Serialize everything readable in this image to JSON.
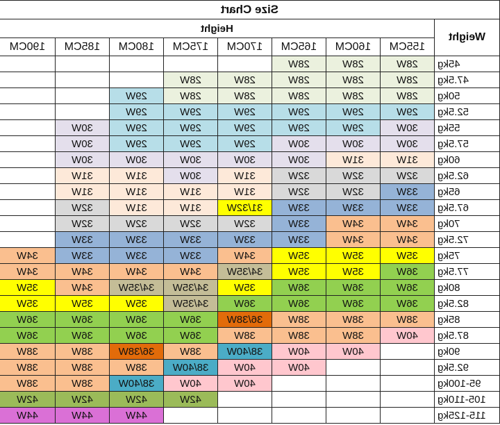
{
  "title": "Size Chart",
  "weight_header": "Weight",
  "height_header": "Height",
  "heights": [
    "155CM",
    "160CM",
    "165CM",
    "170CM",
    "175CM",
    "180CM",
    "185CM",
    "190CM"
  ],
  "colors": {
    "g": "#ebf1de",
    "b": "#b7dee8",
    "l": "#e4dfec",
    "p": "#fde9d9",
    "s": "#d9d9d9",
    "d": "#95b3d7",
    "y": "#ffff00",
    "o": "#fabf8f",
    "k": "#92d050",
    "t": "#c4bd97",
    "r": "#e26b0a",
    "c": "#4bacc6",
    "n": "#ffc7ce",
    "m": "#9bbb59",
    "v": "#da70d6",
    "w": "#ffffff",
    "a": "#fcd5b4"
  },
  "rows": [
    {
      "weight": "45kg",
      "cells": [
        [
          "28W",
          "g"
        ],
        [
          "28W",
          "g"
        ],
        [
          "28W",
          "g"
        ],
        [
          "",
          "w"
        ],
        [
          "",
          "w"
        ],
        [
          "",
          "w"
        ],
        [
          "",
          "w"
        ],
        [
          "",
          "w"
        ]
      ]
    },
    {
      "weight": "47.5kg",
      "cells": [
        [
          "28W",
          "g"
        ],
        [
          "28W",
          "g"
        ],
        [
          "28W",
          "g"
        ],
        [
          "28W",
          "g"
        ],
        [
          "28W",
          "g"
        ],
        [
          "",
          "w"
        ],
        [
          "",
          "w"
        ],
        [
          "",
          "w"
        ]
      ]
    },
    {
      "weight": "50kg",
      "cells": [
        [
          "28W",
          "g"
        ],
        [
          "28W",
          "g"
        ],
        [
          "28W",
          "g"
        ],
        [
          "28W",
          "g"
        ],
        [
          "28W",
          "g"
        ],
        [
          "29W",
          "b"
        ],
        [
          "",
          "w"
        ],
        [
          "",
          "w"
        ]
      ]
    },
    {
      "weight": "52.5kg",
      "cells": [
        [
          "29W",
          "b"
        ],
        [
          "29W",
          "b"
        ],
        [
          "29W",
          "b"
        ],
        [
          "29W",
          "b"
        ],
        [
          "29W",
          "b"
        ],
        [
          "29W",
          "b"
        ],
        [
          "",
          "w"
        ],
        [
          "",
          "w"
        ]
      ]
    },
    {
      "weight": "55kg",
      "cells": [
        [
          "30W",
          "l"
        ],
        [
          "29W",
          "b"
        ],
        [
          "29W",
          "b"
        ],
        [
          "29W",
          "b"
        ],
        [
          "29W",
          "b"
        ],
        [
          "29W",
          "b"
        ],
        [
          "30W",
          "l"
        ],
        [
          "",
          "w"
        ]
      ]
    },
    {
      "weight": "57.5kg",
      "cells": [
        [
          "30W",
          "l"
        ],
        [
          "30W",
          "l"
        ],
        [
          "30W",
          "l"
        ],
        [
          "29W",
          "b"
        ],
        [
          "29W",
          "b"
        ],
        [
          "29W",
          "b"
        ],
        [
          "30W",
          "l"
        ],
        [
          "",
          "w"
        ]
      ]
    },
    {
      "weight": "60kg",
      "cells": [
        [
          "31W",
          "p"
        ],
        [
          "31W",
          "p"
        ],
        [
          "30W",
          "l"
        ],
        [
          "30W",
          "l"
        ],
        [
          "30W",
          "l"
        ],
        [
          "30W",
          "l"
        ],
        [
          "30W",
          "l"
        ],
        [
          "",
          "w"
        ]
      ]
    },
    {
      "weight": "62.5kg",
      "cells": [
        [
          "32W",
          "s"
        ],
        [
          "32W",
          "s"
        ],
        [
          "32W",
          "s"
        ],
        [
          "31W",
          "p"
        ],
        [
          "30W",
          "l"
        ],
        [
          "31W",
          "p"
        ],
        [
          "31W",
          "p"
        ],
        [
          "",
          "w"
        ]
      ]
    },
    {
      "weight": "65kg",
      "cells": [
        [
          "33W",
          "d"
        ],
        [
          "32W",
          "s"
        ],
        [
          "32W",
          "s"
        ],
        [
          "31W",
          "p"
        ],
        [
          "31W",
          "p"
        ],
        [
          "31W",
          "p"
        ],
        [
          "31W",
          "p"
        ],
        [
          "",
          "w"
        ]
      ]
    },
    {
      "weight": "67.5kg",
      "cells": [
        [
          "33W",
          "d"
        ],
        [
          "33W",
          "d"
        ],
        [
          "33W",
          "d"
        ],
        [
          "31/32W",
          "y"
        ],
        [
          "31W",
          "p"
        ],
        [
          "31W",
          "p"
        ],
        [
          "32W",
          "s"
        ],
        [
          "",
          "w"
        ]
      ]
    },
    {
      "weight": "70kg",
      "cells": [
        [
          "34W",
          "o"
        ],
        [
          "34W",
          "o"
        ],
        [
          "33W",
          "d"
        ],
        [
          "32W",
          "s"
        ],
        [
          "32W",
          "s"
        ],
        [
          "32W",
          "s"
        ],
        [
          "32W",
          "s"
        ],
        [
          "",
          "w"
        ]
      ]
    },
    {
      "weight": "72.5kg",
      "cells": [
        [
          "34W",
          "o"
        ],
        [
          "34W",
          "o"
        ],
        [
          "33W",
          "d"
        ],
        [
          "33W",
          "d"
        ],
        [
          "33W",
          "d"
        ],
        [
          "33W",
          "d"
        ],
        [
          "33W",
          "d"
        ],
        [
          "",
          "w"
        ]
      ]
    },
    {
      "weight": "75kg",
      "cells": [
        [
          "35W",
          "y"
        ],
        [
          "35W",
          "y"
        ],
        [
          "35W",
          "y"
        ],
        [
          "34W",
          "o"
        ],
        [
          "33W",
          "d"
        ],
        [
          "33W",
          "d"
        ],
        [
          "33W",
          "d"
        ],
        [
          "34W",
          "o"
        ]
      ]
    },
    {
      "weight": "77.5kg",
      "cells": [
        [
          "36W",
          "k"
        ],
        [
          "35W",
          "y"
        ],
        [
          "35W",
          "y"
        ],
        [
          "34/35W",
          "t"
        ],
        [
          "34W",
          "o"
        ],
        [
          "34W",
          "o"
        ],
        [
          "34W",
          "o"
        ],
        [
          "34W",
          "o"
        ]
      ]
    },
    {
      "weight": "80kg",
      "cells": [
        [
          "36W",
          "k"
        ],
        [
          "36W",
          "k"
        ],
        [
          "36W",
          "k"
        ],
        [
          "35W",
          "y"
        ],
        [
          "34/35W",
          "t"
        ],
        [
          "34/35W",
          "t"
        ],
        [
          "34W",
          "o"
        ],
        [
          "35W",
          "y"
        ]
      ]
    },
    {
      "weight": "82.5kg",
      "cells": [
        [
          "36W",
          "k"
        ],
        [
          "36W",
          "k"
        ],
        [
          "36W",
          "k"
        ],
        [
          "36W",
          "k"
        ],
        [
          "34/35W",
          "t"
        ],
        [
          "35W",
          "y"
        ],
        [
          "35W",
          "y"
        ],
        [
          "35W",
          "y"
        ]
      ]
    },
    {
      "weight": "85kg",
      "cells": [
        [
          "38W",
          "o"
        ],
        [
          "38W",
          "o"
        ],
        [
          "38W",
          "o"
        ],
        [
          "36/38W",
          "r"
        ],
        [
          "36W",
          "k"
        ],
        [
          "36W",
          "k"
        ],
        [
          "36W",
          "k"
        ],
        [
          "36W",
          "k"
        ]
      ]
    },
    {
      "weight": "87.5kg",
      "cells": [
        [
          "40W",
          "n"
        ],
        [
          "38W",
          "o"
        ],
        [
          "38W",
          "o"
        ],
        [
          "38W",
          "o"
        ],
        [
          "36W",
          "k"
        ],
        [
          "36W",
          "k"
        ],
        [
          "36W",
          "k"
        ],
        [
          "36W",
          "k"
        ]
      ]
    },
    {
      "weight": "90kg",
      "cells": [
        [
          "",
          "w"
        ],
        [
          "40W",
          "n"
        ],
        [
          "40W",
          "n"
        ],
        [
          "38/40W",
          "c"
        ],
        [
          "38W",
          "o"
        ],
        [
          "36/38W",
          "r"
        ],
        [
          "38W",
          "o"
        ],
        [
          "38W",
          "o"
        ]
      ]
    },
    {
      "weight": "92.5kg",
      "cells": [
        [
          "",
          "w"
        ],
        [
          "",
          "w"
        ],
        [
          "40W",
          "n"
        ],
        [
          "40W",
          "n"
        ],
        [
          "38/40W",
          "c"
        ],
        [
          "38W",
          "o"
        ],
        [
          "38W",
          "o"
        ],
        [
          "38W",
          "o"
        ]
      ]
    },
    {
      "weight": "95-100kg",
      "cells": [
        [
          "",
          "w"
        ],
        [
          "",
          "w"
        ],
        [
          "",
          "w"
        ],
        [
          "40W",
          "n"
        ],
        [
          "40W",
          "n"
        ],
        [
          "38/40W",
          "c"
        ],
        [
          "38W",
          "o"
        ],
        [
          "38W",
          "o"
        ]
      ]
    },
    {
      "weight": "105-110kg",
      "cells": [
        [
          "",
          "w"
        ],
        [
          "",
          "w"
        ],
        [
          "",
          "w"
        ],
        [
          "",
          "w"
        ],
        [
          "42W",
          "m"
        ],
        [
          "42W",
          "m"
        ],
        [
          "42W",
          "m"
        ],
        [
          "42W",
          "m"
        ]
      ]
    },
    {
      "weight": "115-125kg",
      "cells": [
        [
          "",
          "w"
        ],
        [
          "",
          "w"
        ],
        [
          "",
          "w"
        ],
        [
          "",
          "w"
        ],
        [
          "",
          "w"
        ],
        [
          "44W",
          "v"
        ],
        [
          "44W",
          "v"
        ],
        [
          "44W",
          "v"
        ]
      ]
    }
  ]
}
